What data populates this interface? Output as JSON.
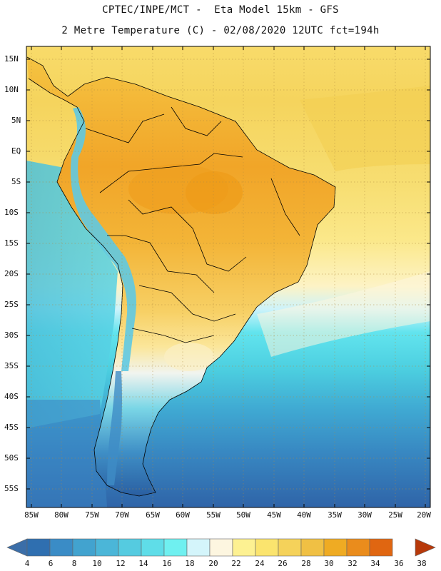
{
  "header": {
    "line1": "CPTEC/INPE/MCT -  Eta Model 15km - GFS",
    "line2": "2 Metre Temperature (C) - 02/08/2020 12UTC fct=194h"
  },
  "map": {
    "lat_labels": [
      "15N",
      "10N",
      "5N",
      "EQ",
      "5S",
      "10S",
      "15S",
      "20S",
      "25S",
      "30S",
      "35S",
      "40S",
      "45S",
      "50S",
      "55S"
    ],
    "lon_labels": [
      "85W",
      "80W",
      "75W",
      "70W",
      "65W",
      "60W",
      "55W",
      "50W",
      "45W",
      "40W",
      "35W",
      "30W",
      "25W",
      "20W"
    ]
  },
  "colorbar": {
    "labels": [
      "4",
      "6",
      "8",
      "10",
      "12",
      "14",
      "16",
      "18",
      "20",
      "22",
      "24",
      "26",
      "28",
      "30",
      "32",
      "34",
      "36",
      "38"
    ],
    "colors": [
      "#3b7dbf",
      "#2f6fb0",
      "#3a8cc6",
      "#42a3cf",
      "#4bb6d8",
      "#55cbe0",
      "#5fdde8",
      "#6ff0f0",
      "#d4f5fb",
      "#fdf6e0",
      "#fdf192",
      "#fbe46e",
      "#f5d25a",
      "#f0c044",
      "#efab23",
      "#ea8c1c",
      "#e06611",
      "#c84608"
    ]
  }
}
